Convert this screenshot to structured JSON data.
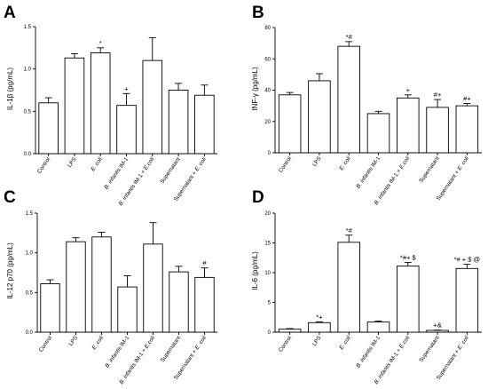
{
  "chart_data": [
    {
      "type": "bar",
      "panel_label": "A",
      "ylabel": "IL-1β (pg/mL)",
      "ylim": [
        0,
        1.5
      ],
      "yticks": [
        "0.0",
        "0.5",
        "1.0",
        "1.5"
      ],
      "ytick_values": [
        0,
        0.5,
        1.0,
        1.5
      ],
      "categories": [
        "Control",
        "LPS",
        "E. coli",
        "B. infantis IM-1",
        "B. infantis IM-1 + E.coli",
        "Supernatant",
        "Supernatant + E. coli"
      ],
      "italic_parts": [
        [],
        [],
        [
          "E. coli"
        ],
        [
          "B. infantis"
        ],
        [
          "B. infantis",
          "E.coli"
        ],
        [],
        [
          "E. coli"
        ]
      ],
      "values": [
        0.6,
        1.13,
        1.19,
        0.57,
        1.1,
        0.75,
        0.69
      ],
      "errors": [
        0.06,
        0.05,
        0.06,
        0.14,
        0.27,
        0.08,
        0.12
      ],
      "annotations": [
        "",
        "",
        "*",
        "+",
        "",
        "",
        ""
      ]
    },
    {
      "type": "bar",
      "panel_label": "B",
      "ylabel": "INF-γ (pg/mL)",
      "ylim": [
        0,
        80
      ],
      "yticks": [
        "0",
        "20",
        "40",
        "60",
        "80"
      ],
      "ytick_values": [
        0,
        20,
        40,
        60,
        80
      ],
      "categories": [
        "Control",
        "LPS",
        "E. coli",
        "B. infantis IM-1",
        "B. infantis IM-1 + E.coli",
        "Supernatant",
        "Supernatant + E. coli"
      ],
      "italic_parts": [
        [],
        [],
        [
          "E. coli"
        ],
        [
          "B. infantis"
        ],
        [
          "B. infantis",
          "E.coli"
        ],
        [],
        [
          "E. coli"
        ]
      ],
      "values": [
        37,
        46,
        68,
        25,
        35,
        29,
        30
      ],
      "errors": [
        1.5,
        4.5,
        3,
        1.5,
        2,
        5,
        1.5
      ],
      "annotations": [
        "",
        "",
        "*#",
        "",
        "+",
        "#+",
        "#+"
      ]
    },
    {
      "type": "bar",
      "panel_label": "C",
      "ylabel": "IL-12 p70 (pg/mL)",
      "ylim": [
        0,
        1.5
      ],
      "yticks": [
        "0.0",
        "0.5",
        "1.0",
        "1.5"
      ],
      "ytick_values": [
        0,
        0.5,
        1.0,
        1.5
      ],
      "categories": [
        "Control",
        "LPS",
        "E. coli",
        "B. infantis IM-1",
        "B. infantis IM-1 + E.coli",
        "Supernatant",
        "Supernatant + E. coli"
      ],
      "italic_parts": [
        [],
        [],
        [
          "E. coli"
        ],
        [
          "B. infantis"
        ],
        [
          "B. infantis",
          "E.coli"
        ],
        [],
        [
          "E. coli"
        ]
      ],
      "values": [
        0.61,
        1.14,
        1.2,
        0.57,
        1.11,
        0.76,
        0.69
      ],
      "errors": [
        0.05,
        0.05,
        0.06,
        0.14,
        0.27,
        0.07,
        0.12
      ],
      "annotations": [
        "",
        "",
        "",
        "",
        "",
        "",
        "#"
      ]
    },
    {
      "type": "bar",
      "panel_label": "D",
      "ylabel": "IL-6 (pg/mL)",
      "ylim": [
        0,
        20
      ],
      "yticks": [
        "0",
        "5",
        "10",
        "15",
        "20"
      ],
      "ytick_values": [
        0,
        5,
        10,
        15,
        20
      ],
      "categories": [
        "Control",
        "LPS",
        "E. coli",
        "B. infantis IM-1",
        "B. infantis IM-1 + E.coli",
        "Supernatant",
        "Supernatant + E. coli"
      ],
      "italic_parts": [
        [],
        [],
        [
          "E. coli"
        ],
        [
          "B. infantis"
        ],
        [
          "B. infantis",
          "E.coli"
        ],
        [],
        [
          "E. coli"
        ]
      ],
      "values": [
        0.5,
        1.6,
        15.1,
        1.7,
        11.1,
        0.3,
        10.7
      ],
      "errors": [
        0.1,
        0.15,
        1.2,
        0.15,
        0.6,
        0.05,
        0.7
      ],
      "annotations": [
        "",
        "*+",
        "*#",
        "",
        "*#+ $",
        "+&",
        "*# + $ @"
      ]
    }
  ]
}
